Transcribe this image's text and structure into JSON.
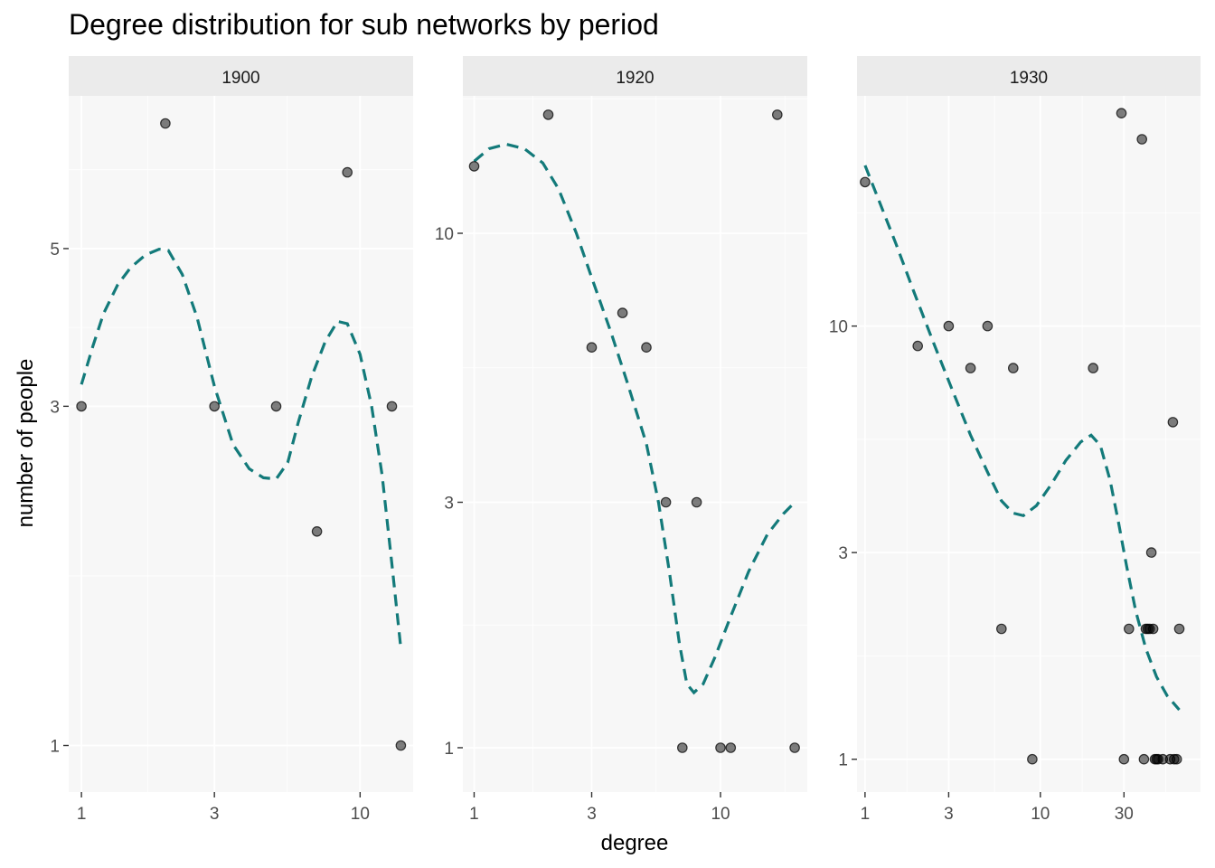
{
  "chart_data": {
    "type": "scatter",
    "title": "Degree distribution for sub networks by period",
    "xlabel": "degree",
    "ylabel": "number of people",
    "x_scale": "log10",
    "y_scale": "log10",
    "grid": true,
    "colors": {
      "panel_bg": "#f7f7f7",
      "grid": "#ffffff",
      "strip_bg": "#ebebeb",
      "point": "#000000",
      "smooth": "#137a7a"
    },
    "panels": [
      {
        "strip": "1900",
        "x_ticks": [
          1,
          3,
          10
        ],
        "y_ticks": [
          1,
          3,
          5
        ],
        "xlim": [
          0.9,
          15.5
        ],
        "ylim": [
          0.86,
          8.2
        ],
        "points": [
          {
            "x": 1,
            "y": 3
          },
          {
            "x": 2,
            "y": 7.5
          },
          {
            "x": 3,
            "y": 3
          },
          {
            "x": 5,
            "y": 3
          },
          {
            "x": 7,
            "y": 2
          },
          {
            "x": 9,
            "y": 6.4
          },
          {
            "x": 13,
            "y": 3
          },
          {
            "x": 14,
            "y": 1
          }
        ],
        "smooth": [
          {
            "x": 1,
            "y": 3.22
          },
          {
            "x": 1.1,
            "y": 3.65
          },
          {
            "x": 1.2,
            "y": 4.05
          },
          {
            "x": 1.35,
            "y": 4.45
          },
          {
            "x": 1.5,
            "y": 4.7
          },
          {
            "x": 1.7,
            "y": 4.9
          },
          {
            "x": 1.9,
            "y": 4.99
          },
          {
            "x": 2.05,
            "y": 4.97
          },
          {
            "x": 2.3,
            "y": 4.6
          },
          {
            "x": 2.6,
            "y": 4.0
          },
          {
            "x": 3.0,
            "y": 3.2
          },
          {
            "x": 3.5,
            "y": 2.65
          },
          {
            "x": 4.0,
            "y": 2.45
          },
          {
            "x": 4.5,
            "y": 2.38
          },
          {
            "x": 5.0,
            "y": 2.37
          },
          {
            "x": 5.5,
            "y": 2.5
          },
          {
            "x": 6.0,
            "y": 2.85
          },
          {
            "x": 6.7,
            "y": 3.3
          },
          {
            "x": 7.5,
            "y": 3.7
          },
          {
            "x": 8.3,
            "y": 3.95
          },
          {
            "x": 9.0,
            "y": 3.92
          },
          {
            "x": 10.0,
            "y": 3.55
          },
          {
            "x": 11.0,
            "y": 3.0
          },
          {
            "x": 12.0,
            "y": 2.4
          },
          {
            "x": 13.0,
            "y": 1.8
          },
          {
            "x": 14.0,
            "y": 1.37
          }
        ]
      },
      {
        "strip": "1920",
        "x_ticks": [
          1,
          3,
          10
        ],
        "y_ticks": [
          1,
          3,
          10
        ],
        "xlim": [
          0.9,
          22.5
        ],
        "ylim": [
          0.82,
          18.5
        ],
        "points": [
          {
            "x": 1,
            "y": 13.5
          },
          {
            "x": 2,
            "y": 17
          },
          {
            "x": 3,
            "y": 6
          },
          {
            "x": 4,
            "y": 7
          },
          {
            "x": 5,
            "y": 6
          },
          {
            "x": 6,
            "y": 3
          },
          {
            "x": 7,
            "y": 1
          },
          {
            "x": 8,
            "y": 3
          },
          {
            "x": 10,
            "y": 1
          },
          {
            "x": 11,
            "y": 1
          },
          {
            "x": 17,
            "y": 17
          },
          {
            "x": 20,
            "y": 1
          }
        ],
        "smooth": [
          {
            "x": 1,
            "y": 13.8
          },
          {
            "x": 1.15,
            "y": 14.6
          },
          {
            "x": 1.35,
            "y": 14.9
          },
          {
            "x": 1.6,
            "y": 14.6
          },
          {
            "x": 1.9,
            "y": 13.7
          },
          {
            "x": 2.2,
            "y": 12.2
          },
          {
            "x": 2.6,
            "y": 10.0
          },
          {
            "x": 3.0,
            "y": 8.2
          },
          {
            "x": 3.6,
            "y": 6.4
          },
          {
            "x": 4.2,
            "y": 5.1
          },
          {
            "x": 5.0,
            "y": 3.9
          },
          {
            "x": 5.6,
            "y": 3.0
          },
          {
            "x": 6.2,
            "y": 2.2
          },
          {
            "x": 6.8,
            "y": 1.6
          },
          {
            "x": 7.3,
            "y": 1.33
          },
          {
            "x": 7.8,
            "y": 1.28
          },
          {
            "x": 8.5,
            "y": 1.33
          },
          {
            "x": 9.5,
            "y": 1.5
          },
          {
            "x": 11.0,
            "y": 1.8
          },
          {
            "x": 13.0,
            "y": 2.2
          },
          {
            "x": 15.5,
            "y": 2.6
          },
          {
            "x": 18.0,
            "y": 2.85
          },
          {
            "x": 20.0,
            "y": 3.0
          }
        ]
      },
      {
        "strip": "1930",
        "x_ticks": [
          1,
          3,
          10,
          30
        ],
        "y_ticks": [
          1,
          3,
          10
        ],
        "xlim": [
          0.9,
          82
        ],
        "ylim": [
          0.84,
          34
        ],
        "points": [
          {
            "x": 1,
            "y": 21.5
          },
          {
            "x": 2,
            "y": 9
          },
          {
            "x": 3,
            "y": 10
          },
          {
            "x": 4,
            "y": 8
          },
          {
            "x": 5,
            "y": 10
          },
          {
            "x": 6,
            "y": 2
          },
          {
            "x": 7,
            "y": 8
          },
          {
            "x": 9,
            "y": 1
          },
          {
            "x": 20,
            "y": 8
          },
          {
            "x": 29,
            "y": 31
          },
          {
            "x": 30,
            "y": 1
          },
          {
            "x": 32,
            "y": 2
          },
          {
            "x": 38,
            "y": 27
          },
          {
            "x": 39,
            "y": 1
          },
          {
            "x": 40,
            "y": 2
          },
          {
            "x": 41,
            "y": 2
          },
          {
            "x": 42,
            "y": 2
          },
          {
            "x": 43,
            "y": 3
          },
          {
            "x": 44,
            "y": 2
          },
          {
            "x": 45,
            "y": 1
          },
          {
            "x": 46,
            "y": 1
          },
          {
            "x": 47,
            "y": 1
          },
          {
            "x": 50,
            "y": 1
          },
          {
            "x": 55,
            "y": 1
          },
          {
            "x": 57,
            "y": 6
          },
          {
            "x": 58,
            "y": 1
          },
          {
            "x": 60,
            "y": 1
          },
          {
            "x": 62,
            "y": 2
          }
        ],
        "smooth": [
          {
            "x": 1,
            "y": 23.5
          },
          {
            "x": 1.2,
            "y": 19.5
          },
          {
            "x": 1.5,
            "y": 15.5
          },
          {
            "x": 1.9,
            "y": 12.0
          },
          {
            "x": 2.5,
            "y": 9.0
          },
          {
            "x": 3.2,
            "y": 7.0
          },
          {
            "x": 4.0,
            "y": 5.6
          },
          {
            "x": 5.0,
            "y": 4.6
          },
          {
            "x": 6.0,
            "y": 3.95
          },
          {
            "x": 7.0,
            "y": 3.7
          },
          {
            "x": 8.0,
            "y": 3.65
          },
          {
            "x": 9.5,
            "y": 3.85
          },
          {
            "x": 11.5,
            "y": 4.3
          },
          {
            "x": 14.0,
            "y": 4.9
          },
          {
            "x": 17.0,
            "y": 5.4
          },
          {
            "x": 19.5,
            "y": 5.6
          },
          {
            "x": 22.0,
            "y": 5.3
          },
          {
            "x": 25.0,
            "y": 4.4
          },
          {
            "x": 28.0,
            "y": 3.5
          },
          {
            "x": 31.0,
            "y": 2.8
          },
          {
            "x": 35.0,
            "y": 2.2
          },
          {
            "x": 40.0,
            "y": 1.8
          },
          {
            "x": 46.0,
            "y": 1.55
          },
          {
            "x": 53.0,
            "y": 1.4
          },
          {
            "x": 62.0,
            "y": 1.3
          }
        ]
      }
    ]
  }
}
